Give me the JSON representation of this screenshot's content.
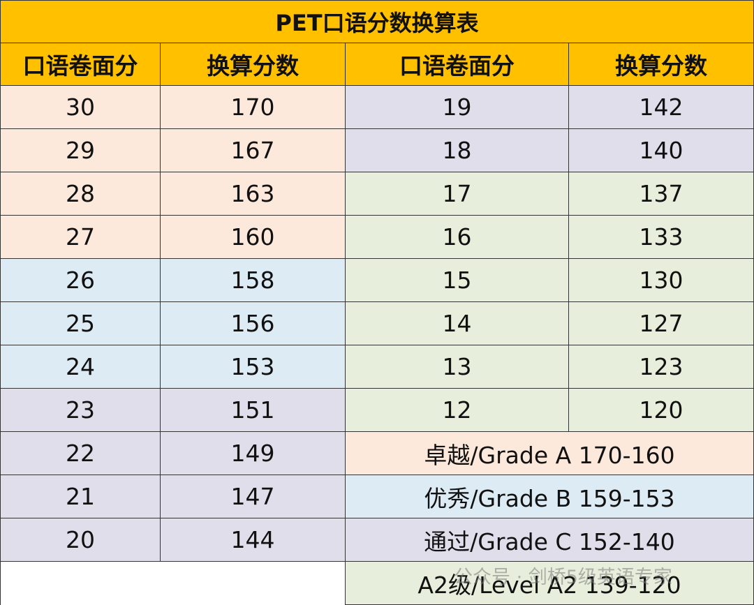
{
  "title": "PET口语分数换算表",
  "headers": [
    "口语卷面分",
    "换算分数",
    "口语卷面分",
    "换算分数"
  ],
  "left_rows": [
    [
      30,
      170
    ],
    [
      29,
      167
    ],
    [
      28,
      163
    ],
    [
      27,
      160
    ],
    [
      26,
      158
    ],
    [
      25,
      156
    ],
    [
      24,
      153
    ],
    [
      23,
      151
    ],
    [
      22,
      149
    ],
    [
      21,
      147
    ],
    [
      20,
      144
    ]
  ],
  "right_rows": [
    [
      19,
      142
    ],
    [
      18,
      140
    ],
    [
      17,
      137
    ],
    [
      16,
      133
    ],
    [
      15,
      130
    ],
    [
      14,
      127
    ],
    [
      13,
      123
    ],
    [
      12,
      120
    ]
  ],
  "grades": [
    "卓越/Grade A 170-160",
    "优秀/Grade B 159-153",
    "通过/Grade C 152-140",
    "A2级/Level A2 139-120"
  ],
  "watermark": "公众号 · 剑桥5级英语专家"
}
